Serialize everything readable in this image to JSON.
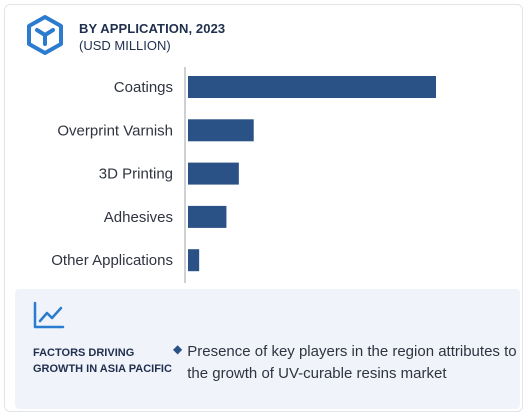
{
  "header": {
    "title": "BY APPLICATION, 2023",
    "subtitle": "(USD MILLION)",
    "icon": "cube-logo-icon"
  },
  "colors": {
    "bar": "#2b5287",
    "axis": "#9aa3ad",
    "text": "#2f3440",
    "logo": "#2b7ccf",
    "footer_bg": "#f0f3fa"
  },
  "chart_data": {
    "type": "bar",
    "orientation": "horizontal",
    "categories": [
      "Coatings",
      "Overprint Varnish",
      "3D Printing",
      "Adhesives",
      "Other Applications"
    ],
    "values": [
      100,
      26.5,
      20.5,
      15.5,
      4.5
    ],
    "xlim": [
      0,
      100
    ],
    "grid": false,
    "value_labels_shown": false
  },
  "footer": {
    "icon": "line-chart-icon",
    "heading": "FACTORS DRIVING GROWTH IN ASIA PACIFIC",
    "items": [
      "Presence of key players in the region attributes to the growth of UV-curable resins market"
    ]
  }
}
